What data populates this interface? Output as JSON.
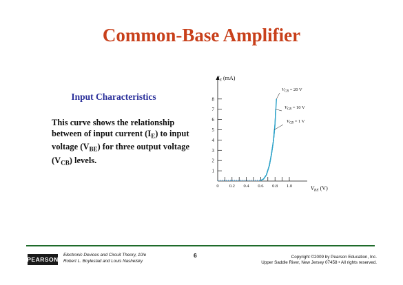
{
  "slide": {
    "title": "Common-Base Amplifier",
    "subheading": "Input Characteristics",
    "body": {
      "line1": "This curve shows the relationship",
      "line2_a": "between of input current (I",
      "line2_sub": "E",
      "line2_b": ") to input",
      "line3_a": "voltage (V",
      "line3_sub": "BE",
      "line3_b": ") for three output voltage",
      "line4_a": "(V",
      "line4_sub": "CB",
      "line4_b": ") levels."
    }
  },
  "chart_data": {
    "type": "line",
    "ylabel_main": "I",
    "ylabel_sub": "E",
    "ylabel_unit": "(mA)",
    "xlabel_main": "V",
    "xlabel_sub": "BE",
    "xlabel_unit": "(V)",
    "xlim": [
      0,
      1.1
    ],
    "ylim": [
      0,
      9
    ],
    "x_ticks": [
      "0",
      "0.2",
      "0.4",
      "0.6",
      "0.8",
      "1.0"
    ],
    "y_ticks": [
      "1",
      "2",
      "3",
      "4",
      "5",
      "6",
      "7",
      "8"
    ],
    "line_color": "#2fa3c9",
    "dotted_color": "#3a8fc8",
    "series": [
      {
        "name": "V_CB = 20 V",
        "label_main": "V",
        "label_sub": "CB",
        "label_value": "= 20 V",
        "x": [
          0.6,
          0.64,
          0.68,
          0.72,
          0.75,
          0.78,
          0.8,
          0.82
        ],
        "y": [
          0.05,
          0.2,
          0.6,
          1.5,
          2.6,
          4.0,
          5.6,
          8.0
        ]
      },
      {
        "name": "V_CB = 10 V",
        "label_main": "V",
        "label_sub": "CB",
        "label_value": "= 10 V",
        "x": [
          0.6,
          0.64,
          0.68,
          0.72,
          0.75,
          0.78,
          0.8,
          0.81
        ],
        "y": [
          0.05,
          0.2,
          0.6,
          1.5,
          2.6,
          4.0,
          5.5,
          7.0
        ]
      },
      {
        "name": "V_CB = 1 V",
        "label_main": "V",
        "label_sub": "CB",
        "label_value": "= 1 V",
        "x": [
          0.6,
          0.64,
          0.68,
          0.72,
          0.75,
          0.78,
          0.79
        ],
        "y": [
          0.05,
          0.2,
          0.6,
          1.5,
          2.6,
          4.0,
          5.0
        ]
      }
    ],
    "baseline": {
      "x": [
        0.0,
        0.6
      ],
      "y": [
        0.05,
        0.05
      ]
    }
  },
  "footer": {
    "logo": "PEARSON",
    "book_line1": "Electronic Devices and Circuit Theory, 10/e",
    "book_line2": "Robert L. Boylestad and Louis Nashelsky",
    "page": "6",
    "copyright_line1": "Copyright ©2009 by Pearson Education, Inc.",
    "copyright_line2": "Upper Saddle River, New Jersey 07458 • All rights reserved."
  }
}
